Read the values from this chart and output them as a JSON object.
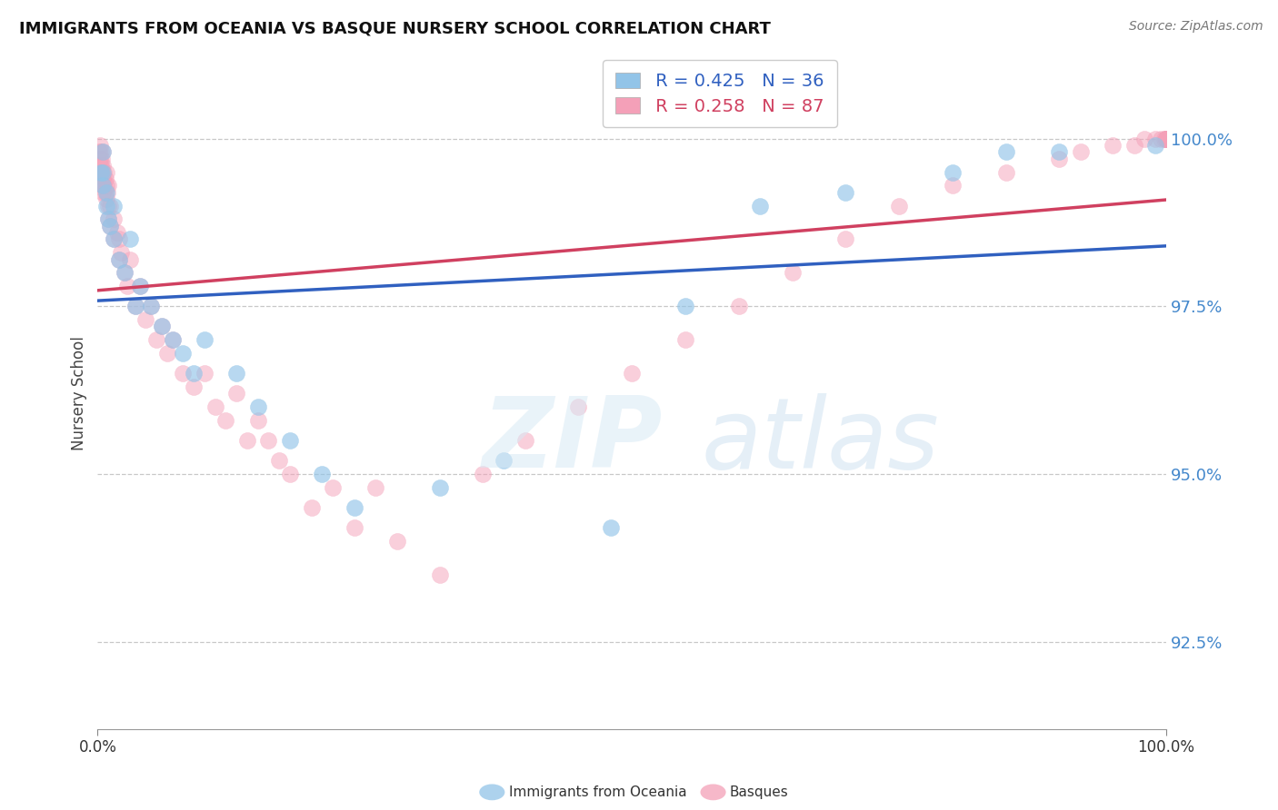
{
  "title": "IMMIGRANTS FROM OCEANIA VS BASQUE NURSERY SCHOOL CORRELATION CHART",
  "source_text": "Source: ZipAtlas.com",
  "ylabel": "Nursery School",
  "legend_label_blue": "Immigrants from Oceania",
  "legend_label_pink": "Basques",
  "R_blue": 0.425,
  "N_blue": 36,
  "R_pink": 0.258,
  "N_pink": 87,
  "blue_color": "#92C4E8",
  "pink_color": "#F4A0B8",
  "blue_line_color": "#3060C0",
  "pink_line_color": "#D04060",
  "xmin": 0.0,
  "xmax": 100.0,
  "ymin": 91.2,
  "ymax": 101.2,
  "ytick_vals": [
    92.5,
    95.0,
    97.5,
    100.0
  ],
  "ytick_labels": [
    "92.5%",
    "95.0%",
    "97.5%",
    "100.0%"
  ],
  "blue_x": [
    0.3,
    0.5,
    0.5,
    0.5,
    0.8,
    0.8,
    1.0,
    1.2,
    1.5,
    1.5,
    2.0,
    2.5,
    3.0,
    3.5,
    4.0,
    5.0,
    6.0,
    7.0,
    8.0,
    9.0,
    10.0,
    13.0,
    15.0,
    18.0,
    21.0,
    24.0,
    32.0,
    38.0,
    48.0,
    55.0,
    62.0,
    70.0,
    80.0,
    85.0,
    90.0,
    99.0
  ],
  "blue_y": [
    99.5,
    99.8,
    99.5,
    99.3,
    99.2,
    99.0,
    98.8,
    98.7,
    99.0,
    98.5,
    98.2,
    98.0,
    98.5,
    97.5,
    97.8,
    97.5,
    97.2,
    97.0,
    96.8,
    96.5,
    97.0,
    96.5,
    96.0,
    95.5,
    95.0,
    94.5,
    94.8,
    95.2,
    94.2,
    97.5,
    99.0,
    99.2,
    99.5,
    99.8,
    99.8,
    99.9
  ],
  "pink_x": [
    0.1,
    0.2,
    0.2,
    0.3,
    0.3,
    0.3,
    0.4,
    0.4,
    0.5,
    0.5,
    0.5,
    0.5,
    0.5,
    0.6,
    0.6,
    0.7,
    0.7,
    0.8,
    0.8,
    0.8,
    0.9,
    1.0,
    1.0,
    1.0,
    1.2,
    1.2,
    1.5,
    1.5,
    1.8,
    2.0,
    2.0,
    2.2,
    2.5,
    2.8,
    3.0,
    3.5,
    4.0,
    4.5,
    5.0,
    5.5,
    6.0,
    6.5,
    7.0,
    8.0,
    9.0,
    10.0,
    11.0,
    12.0,
    13.0,
    14.0,
    15.0,
    16.0,
    17.0,
    18.0,
    20.0,
    22.0,
    24.0,
    26.0,
    28.0,
    32.0,
    36.0,
    40.0,
    45.0,
    50.0,
    55.0,
    60.0,
    65.0,
    70.0,
    75.0,
    80.0,
    85.0,
    90.0,
    92.0,
    95.0,
    97.0,
    98.0,
    99.0,
    99.5,
    99.8,
    100.0,
    100.0,
    100.0,
    100.0,
    100.0,
    100.0,
    100.0,
    100.0
  ],
  "pink_y": [
    99.8,
    99.9,
    99.7,
    99.8,
    99.6,
    99.5,
    99.7,
    99.5,
    99.8,
    99.6,
    99.4,
    99.3,
    99.2,
    99.5,
    99.3,
    99.4,
    99.2,
    99.5,
    99.3,
    99.1,
    99.2,
    99.3,
    99.0,
    98.8,
    99.0,
    98.7,
    98.8,
    98.5,
    98.6,
    98.5,
    98.2,
    98.3,
    98.0,
    97.8,
    98.2,
    97.5,
    97.8,
    97.3,
    97.5,
    97.0,
    97.2,
    96.8,
    97.0,
    96.5,
    96.3,
    96.5,
    96.0,
    95.8,
    96.2,
    95.5,
    95.8,
    95.5,
    95.2,
    95.0,
    94.5,
    94.8,
    94.2,
    94.8,
    94.0,
    93.5,
    95.0,
    95.5,
    96.0,
    96.5,
    97.0,
    97.5,
    98.0,
    98.5,
    99.0,
    99.3,
    99.5,
    99.7,
    99.8,
    99.9,
    99.9,
    100.0,
    100.0,
    100.0,
    100.0,
    100.0,
    100.0,
    100.0,
    100.0,
    100.0,
    100.0,
    100.0,
    100.0
  ]
}
